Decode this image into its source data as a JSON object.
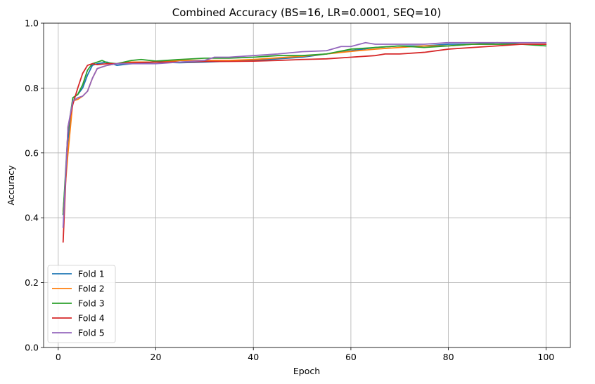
{
  "chart_data": {
    "type": "line",
    "title": "Combined Accuracy (BS=16, LR=0.0001, SEQ=10)",
    "xlabel": "Epoch",
    "ylabel": "Accuracy",
    "xlim": [
      -3,
      105
    ],
    "ylim": [
      0.0,
      1.0
    ],
    "xticks": [
      0,
      20,
      40,
      60,
      80,
      100
    ],
    "yticks": [
      0.0,
      0.2,
      0.4,
      0.6,
      0.8,
      1.0
    ],
    "xtick_labels": [
      "0",
      "20",
      "40",
      "60",
      "80",
      "100"
    ],
    "ytick_labels": [
      "0.0",
      "0.2",
      "0.4",
      "0.6",
      "0.8",
      "1.0"
    ],
    "grid": true,
    "legend_position": "lower-left",
    "series": [
      {
        "name": "Fold 1",
        "color": "#1f77b4",
        "x": [
          1,
          2,
          3,
          4,
          5,
          6,
          7,
          8,
          10,
          12,
          15,
          20,
          25,
          30,
          35,
          40,
          45,
          50,
          55,
          60,
          65,
          70,
          75,
          80,
          85,
          90,
          95,
          100
        ],
        "y": [
          0.41,
          0.64,
          0.77,
          0.78,
          0.8,
          0.84,
          0.87,
          0.875,
          0.88,
          0.87,
          0.875,
          0.88,
          0.878,
          0.88,
          0.883,
          0.885,
          0.89,
          0.895,
          0.905,
          0.915,
          0.925,
          0.93,
          0.93,
          0.935,
          0.935,
          0.94,
          0.935,
          0.935
        ]
      },
      {
        "name": "Fold 2",
        "color": "#ff7f0e",
        "x": [
          1,
          2,
          3,
          4,
          5,
          6,
          7,
          8,
          10,
          12,
          15,
          20,
          25,
          30,
          35,
          40,
          45,
          50,
          55,
          60,
          65,
          70,
          75,
          80,
          85,
          90,
          95,
          100
        ],
        "y": [
          0.42,
          0.6,
          0.76,
          0.765,
          0.775,
          0.79,
          0.83,
          0.86,
          0.87,
          0.875,
          0.88,
          0.88,
          0.885,
          0.885,
          0.885,
          0.888,
          0.893,
          0.898,
          0.905,
          0.913,
          0.92,
          0.925,
          0.93,
          0.93,
          0.935,
          0.935,
          0.935,
          0.935
        ]
      },
      {
        "name": "Fold 3",
        "color": "#2ca02c",
        "x": [
          1,
          2,
          3,
          4,
          5,
          6,
          7,
          8,
          9,
          10,
          12,
          15,
          17,
          20,
          25,
          30,
          35,
          40,
          45,
          50,
          55,
          60,
          65,
          70,
          75,
          80,
          85,
          90,
          95,
          100
        ],
        "y": [
          0.41,
          0.67,
          0.77,
          0.78,
          0.81,
          0.855,
          0.875,
          0.88,
          0.885,
          0.878,
          0.875,
          0.885,
          0.888,
          0.883,
          0.888,
          0.892,
          0.892,
          0.895,
          0.9,
          0.9,
          0.905,
          0.92,
          0.925,
          0.93,
          0.925,
          0.93,
          0.935,
          0.935,
          0.935,
          0.93
        ]
      },
      {
        "name": "Fold 4",
        "color": "#d62728",
        "x": [
          1,
          2,
          3,
          4,
          5,
          6,
          7,
          8,
          10,
          12,
          15,
          20,
          25,
          30,
          35,
          40,
          45,
          50,
          55,
          60,
          65,
          67,
          70,
          75,
          80,
          85,
          90,
          95,
          100
        ],
        "y": [
          0.325,
          0.68,
          0.75,
          0.8,
          0.845,
          0.87,
          0.875,
          0.872,
          0.875,
          0.875,
          0.878,
          0.88,
          0.88,
          0.882,
          0.882,
          0.883,
          0.885,
          0.888,
          0.89,
          0.895,
          0.9,
          0.905,
          0.905,
          0.91,
          0.92,
          0.925,
          0.93,
          0.935,
          0.935
        ]
      },
      {
        "name": "Fold 5",
        "color": "#9467bd",
        "x": [
          1,
          2,
          3,
          4,
          5,
          6,
          7,
          8,
          9,
          10,
          12,
          15,
          20,
          25,
          30,
          32,
          35,
          40,
          45,
          50,
          55,
          58,
          60,
          63,
          65,
          70,
          75,
          80,
          85,
          90,
          95,
          100
        ],
        "y": [
          0.37,
          0.68,
          0.76,
          0.77,
          0.775,
          0.79,
          0.83,
          0.86,
          0.865,
          0.87,
          0.875,
          0.875,
          0.875,
          0.88,
          0.885,
          0.895,
          0.895,
          0.9,
          0.905,
          0.912,
          0.915,
          0.928,
          0.928,
          0.94,
          0.935,
          0.935,
          0.935,
          0.94,
          0.94,
          0.94,
          0.94,
          0.94
        ]
      }
    ]
  }
}
